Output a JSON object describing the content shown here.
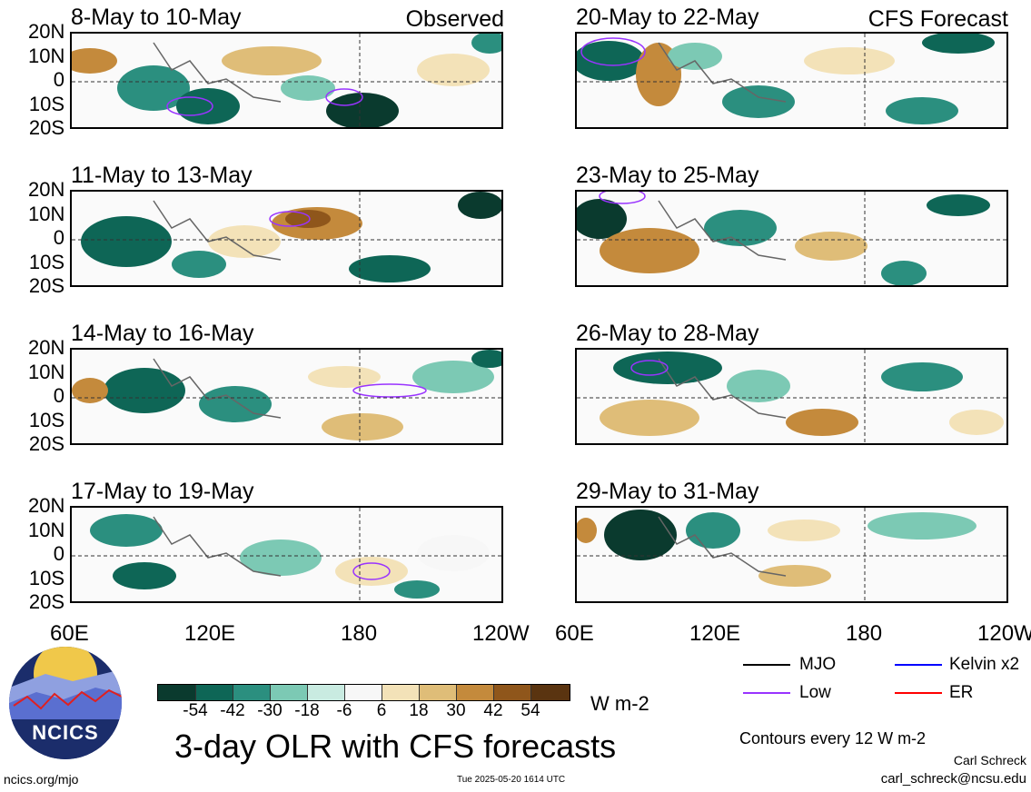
{
  "panels_left": [
    {
      "title": "8-May to 10-May",
      "tag": "Observed"
    },
    {
      "title": "11-May to 13-May",
      "tag": ""
    },
    {
      "title": "14-May to 16-May",
      "tag": ""
    },
    {
      "title": "17-May to 19-May",
      "tag": ""
    }
  ],
  "panels_right": [
    {
      "title": "20-May to 22-May",
      "tag": "CFS Forecast"
    },
    {
      "title": "23-May to 25-May",
      "tag": ""
    },
    {
      "title": "26-May to 28-May",
      "tag": ""
    },
    {
      "title": "29-May to 31-May",
      "tag": ""
    }
  ],
  "lat_labels": [
    "20N",
    "10N",
    "0",
    "10S",
    "20S"
  ],
  "lon_labels": [
    "60E",
    "120E",
    "180",
    "120W"
  ],
  "colorbar": {
    "labels": [
      "-54",
      "-42",
      "-30",
      "-18",
      "-6",
      "6",
      "18",
      "30",
      "42",
      "54"
    ],
    "colors": [
      "#0a3a2e",
      "#0e6656",
      "#2b8f7f",
      "#7cc9b4",
      "#c9ebe1",
      "#f7f7f7",
      "#f3e2b8",
      "#dfbd78",
      "#c48a3c",
      "#8f561b",
      "#5a3410"
    ],
    "units": "W m-2"
  },
  "legend": {
    "mjo": "MJO",
    "kelvin": "Kelvin x2",
    "low": "Low",
    "er": "ER",
    "colors": {
      "mjo": "#000000",
      "kelvin": "#0000ff",
      "low": "#9933ff",
      "er": "#ff0000"
    }
  },
  "main_title": "3-day OLR with CFS forecasts",
  "contour_note": "Contours every 12 W m-2",
  "author": "Carl Schreck",
  "email": "carl_schreck@ncsu.edu",
  "site": "ncics.org/mjo",
  "timestamp": "Tue 2025-05-20 1614 UTC",
  "logo_text": "NCICS"
}
